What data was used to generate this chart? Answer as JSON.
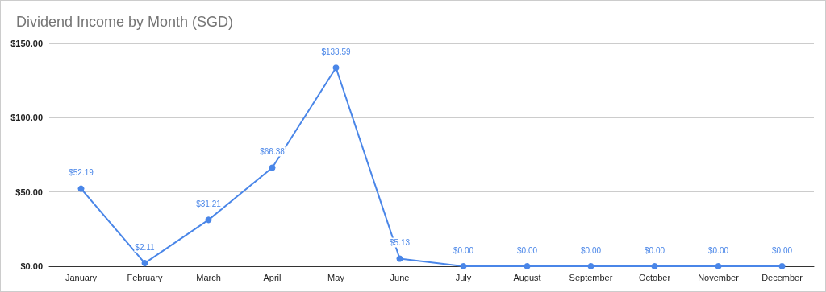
{
  "chart_data": {
    "type": "line",
    "title": "Dividend Income by Month (SGD)",
    "categories": [
      "January",
      "February",
      "March",
      "April",
      "May",
      "June",
      "July",
      "August",
      "September",
      "October",
      "November",
      "December"
    ],
    "series": [
      {
        "color": "#4a86e8",
        "values": [
          52.19,
          2.11,
          31.21,
          66.38,
          133.59,
          5.13,
          0,
          0,
          0,
          0,
          0,
          0
        ],
        "value_labels": [
          "$52.19",
          "$2.11",
          "$31.21",
          "$66.38",
          "$133.59",
          "$5.13",
          "$0.00",
          "$0.00",
          "$0.00",
          "$0.00",
          "$0.00",
          "$0.00"
        ]
      }
    ],
    "ylim": [
      0,
      150
    ],
    "yticks": [
      {
        "value": 0,
        "label": "$0.00"
      },
      {
        "value": 50,
        "label": "$50.00"
      },
      {
        "value": 100,
        "label": "$100.00"
      },
      {
        "value": 150,
        "label": "$150.00"
      }
    ],
    "grid": "y",
    "marker": "circle",
    "line_style": "solid"
  }
}
